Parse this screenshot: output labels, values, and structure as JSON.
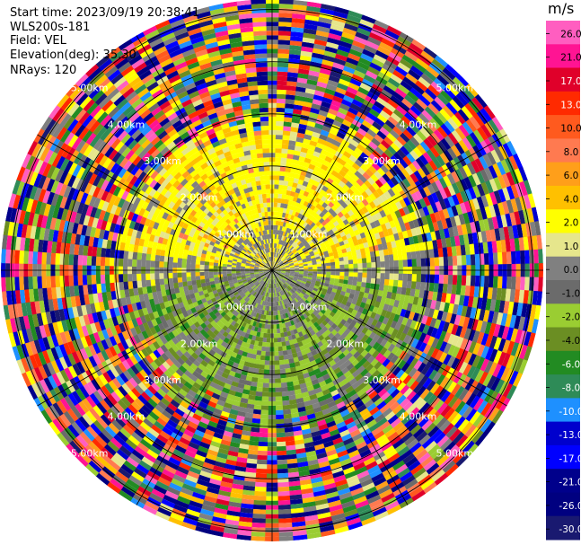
{
  "chart_data": {
    "type": "heatmap",
    "subtype": "polar-ppi",
    "info": {
      "start_time": "Start time: 2023/09/19 20:38:41",
      "instrument": "WLS200s-181",
      "field": "Field: VEL",
      "elevation": "Elevation(deg): 35.30",
      "nrays": "NRays: 120"
    },
    "range_rings_km": [
      1.0,
      2.0,
      3.0,
      4.0,
      5.0
    ],
    "ring_labels": [
      "1.00km",
      "2.00km",
      "3.00km",
      "4.00km",
      "5.00km"
    ],
    "max_range_km": 5.2,
    "spokes_deg": [
      0,
      30,
      60,
      90,
      120,
      150,
      180,
      210,
      240,
      270,
      300,
      330
    ],
    "nrays": 120,
    "colorbar": {
      "unit": "m/s",
      "tick_labels": [
        "26.0",
        "21.0",
        "17.0",
        "13.0",
        "10.0",
        "8.0",
        "6.0",
        "4.0",
        "2.0",
        "1.0",
        "0.0",
        "-1.0",
        "-2.0",
        "-4.0",
        "-6.0",
        "-8.0",
        "-10.0",
        "-13.0",
        "-17.0",
        "-21.0",
        "-26.0",
        "-30.0"
      ],
      "colors": [
        "#ff5ec0",
        "#ff1493",
        "#e0002a",
        "#ff2a00",
        "#ff5a1e",
        "#ff7a50",
        "#ff9f1a",
        "#ffc000",
        "#ffff00",
        "#e6e68c",
        "#808080",
        "#6b6b6b",
        "#9acd32",
        "#6b8e23",
        "#228b22",
        "#2e8b57",
        "#1e90ff",
        "#0000cd",
        "#0000ff",
        "#00008b",
        "#000080",
        "#191970"
      ]
    },
    "field_summary": {
      "near_range_positive_sector": "north",
      "near_range_negative_sector": "south",
      "near_range_extent_km": 3.2
    }
  }
}
